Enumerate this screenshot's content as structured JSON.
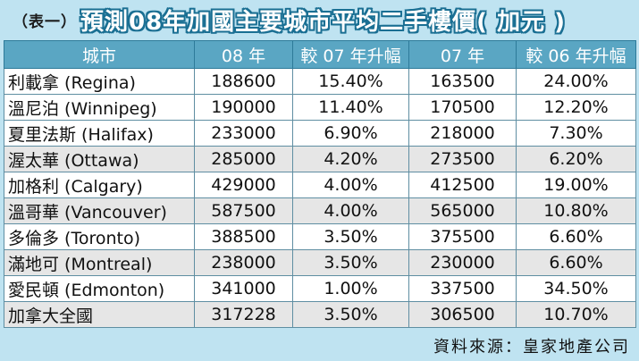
{
  "title": {
    "tag": "（表一）",
    "main": "預測08年加國主要城市平均二手樓價( 加元 )"
  },
  "table": {
    "headers": [
      "城市",
      "08 年",
      "較 07 年升幅",
      "07 年",
      "較 06 年升幅"
    ],
    "rows": [
      {
        "city": "利載拿 (Regina)",
        "y08": "188600",
        "chg07": "15.40%",
        "y07": "163500",
        "chg06": "24.00%"
      },
      {
        "city": "溫尼泊 (Winnipeg)",
        "y08": "190000",
        "chg07": "11.40%",
        "y07": "170500",
        "chg06": "12.20%"
      },
      {
        "city": "夏里法斯 (Halifax)",
        "y08": "233000",
        "chg07": "6.90%",
        "y07": "218000",
        "chg06": "7.30%"
      },
      {
        "city": "渥太華 (Ottawa)",
        "y08": "285000",
        "chg07": "4.20%",
        "y07": "273500",
        "chg06": "6.20%"
      },
      {
        "city": "加格利 (Calgary)",
        "y08": "429000",
        "chg07": "4.00%",
        "y07": "412500",
        "chg06": "19.00%"
      },
      {
        "city": "溫哥華 (Vancouver)",
        "y08": "587500",
        "chg07": "4.00%",
        "y07": "565000",
        "chg06": "10.80%"
      },
      {
        "city": "多倫多 (Toronto)",
        "y08": "388500",
        "chg07": "3.50%",
        "y07": "375500",
        "chg06": "6.60%"
      },
      {
        "city": "滿地可 (Montreal)",
        "y08": "238000",
        "chg07": "3.50%",
        "y07": "230000",
        "chg06": "6.60%"
      },
      {
        "city": "愛民頓 (Edmonton)",
        "y08": "341000",
        "chg07": "1.00%",
        "y07": "337500",
        "chg06": "34.50%"
      },
      {
        "city": "加拿大全國",
        "y08": "317228",
        "chg07": "3.50%",
        "y07": "306500",
        "chg06": "10.70%"
      }
    ]
  },
  "source": "資料來源：皇家地產公司",
  "colors": {
    "background": "#bfe3f1",
    "header": "#5aa6c3",
    "title_outline": "#1a6f93",
    "row_alt": "#e6e6e6"
  }
}
